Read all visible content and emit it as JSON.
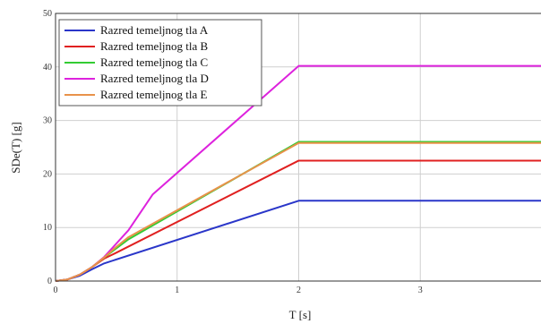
{
  "chart_data": {
    "type": "line",
    "xlabel": "T [s]",
    "ylabel": "SDe(T) [g]",
    "xlim": [
      0,
      4
    ],
    "ylim": [
      0,
      50
    ],
    "x_ticks": [
      "0",
      "1",
      "2",
      "3"
    ],
    "y_ticks": [
      "0",
      "10",
      "20",
      "30",
      "40",
      "50"
    ],
    "grid": true,
    "legend_position": "top-left",
    "series": [
      {
        "name": "Razred temeljnog tla A",
        "color": "#2a36c9",
        "points": [
          [
            0,
            0
          ],
          [
            0.1,
            0.3
          ],
          [
            0.2,
            1.0
          ],
          [
            0.3,
            2.2
          ],
          [
            0.4,
            3.3
          ],
          [
            2.0,
            15.0
          ],
          [
            4.0,
            15.0
          ]
        ]
      },
      {
        "name": "Razred temeljnog tla B",
        "color": "#e02020",
        "points": [
          [
            0,
            0
          ],
          [
            0.1,
            0.3
          ],
          [
            0.2,
            1.2
          ],
          [
            0.3,
            2.6
          ],
          [
            0.4,
            4.2
          ],
          [
            0.5,
            5.3
          ],
          [
            2.0,
            22.5
          ],
          [
            4.0,
            22.5
          ]
        ]
      },
      {
        "name": "Razred temeljnog tla C",
        "color": "#33cc33",
        "points": [
          [
            0,
            0
          ],
          [
            0.1,
            0.3
          ],
          [
            0.2,
            1.2
          ],
          [
            0.3,
            2.6
          ],
          [
            0.4,
            4.4
          ],
          [
            0.6,
            7.8
          ],
          [
            2.0,
            26.0
          ],
          [
            4.0,
            26.0
          ]
        ]
      },
      {
        "name": "Razred temeljnog tla D",
        "color": "#dd22dd",
        "points": [
          [
            0,
            0
          ],
          [
            0.1,
            0.3
          ],
          [
            0.2,
            1.2
          ],
          [
            0.3,
            2.6
          ],
          [
            0.4,
            4.5
          ],
          [
            0.6,
            9.5
          ],
          [
            0.8,
            16.2
          ],
          [
            2.0,
            40.2
          ],
          [
            4.0,
            40.2
          ]
        ]
      },
      {
        "name": "Razred temeljnog tla E",
        "color": "#e8924a",
        "points": [
          [
            0,
            0
          ],
          [
            0.1,
            0.3
          ],
          [
            0.2,
            1.2
          ],
          [
            0.3,
            2.6
          ],
          [
            0.4,
            4.4
          ],
          [
            0.5,
            6.4
          ],
          [
            0.6,
            8.2
          ],
          [
            2.0,
            25.8
          ],
          [
            4.0,
            25.8
          ]
        ]
      }
    ]
  }
}
